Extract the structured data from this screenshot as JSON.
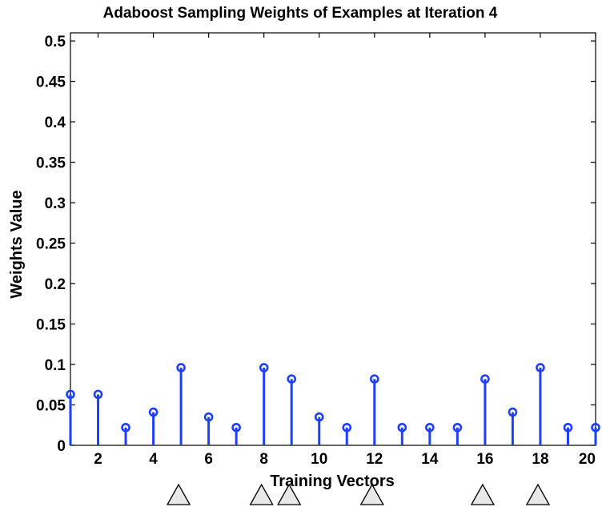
{
  "chart_data": {
    "type": "stem",
    "title": "Adaboost Sampling Weights of Examples  at Iteration 4",
    "xlabel": "Training Vectors",
    "ylabel": "Weights Value",
    "xlim": [
      1,
      20
    ],
    "ylim": [
      0,
      0.51
    ],
    "x_ticks": [
      2,
      4,
      6,
      8,
      10,
      12,
      14,
      16,
      18,
      20
    ],
    "y_ticks": [
      0,
      0.05,
      0.1,
      0.15,
      0.2,
      0.25,
      0.3,
      0.35,
      0.4,
      0.45,
      0.5
    ],
    "y_tick_labels": [
      "0",
      "0.05",
      "0.1",
      "0.15",
      "0.2",
      "0.25",
      "0.3",
      "0.35",
      "0.4",
      "0.45",
      "0.5"
    ],
    "x": [
      1,
      2,
      3,
      4,
      5,
      6,
      7,
      8,
      9,
      10,
      11,
      12,
      13,
      14,
      15,
      16,
      17,
      18,
      19,
      20
    ],
    "values": [
      0.063,
      0.063,
      0.022,
      0.041,
      0.096,
      0.035,
      0.022,
      0.096,
      0.082,
      0.035,
      0.022,
      0.082,
      0.022,
      0.022,
      0.022,
      0.082,
      0.041,
      0.096,
      0.022,
      0.022
    ],
    "triangle_markers_x": [
      5,
      8,
      9,
      12,
      16,
      18
    ],
    "grid": false,
    "colors": {
      "stem": "#1f3fff",
      "marker_fill": "#e8e8e8"
    }
  }
}
